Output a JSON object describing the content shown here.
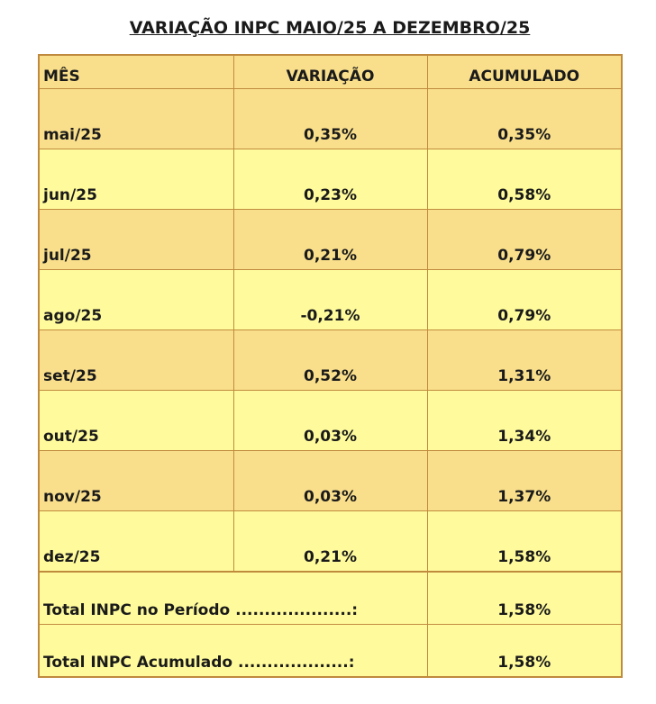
{
  "title": "VARIAÇÃO INPC MAIO/25 A DEZEMBRO/25",
  "headers": {
    "mes": "MÊS",
    "variacao": "VARIAÇÃO",
    "acumulado": "ACUMULADO"
  },
  "rows": [
    {
      "mes": "mai/25",
      "variacao": "0,35%",
      "acumulado": "0,35%"
    },
    {
      "mes": "jun/25",
      "variacao": "0,23%",
      "acumulado": "0,58%"
    },
    {
      "mes": "jul/25",
      "variacao": "0,21%",
      "acumulado": "0,79%"
    },
    {
      "mes": "ago/25",
      "variacao": "-0,21%",
      "acumulado": "0,79%"
    },
    {
      "mes": "set/25",
      "variacao": "0,52%",
      "acumulado": "1,31%"
    },
    {
      "mes": "out/25",
      "variacao": "0,03%",
      "acumulado": "1,34%"
    },
    {
      "mes": "nov/25",
      "variacao": "0,03%",
      "acumulado": "1,37%"
    },
    {
      "mes": "dez/25",
      "variacao": "0,21%",
      "acumulado": "1,58%"
    }
  ],
  "totals": [
    {
      "label": "Total INPC no Período ....................:",
      "value": "1,58%"
    },
    {
      "label": "Total INPC Acumulado ...................:",
      "value": "1,58%"
    }
  ],
  "colors": {
    "row_light_orange": "#f9df8b",
    "row_light_yellow": "#fffb9c",
    "border": "#c08a3e"
  }
}
